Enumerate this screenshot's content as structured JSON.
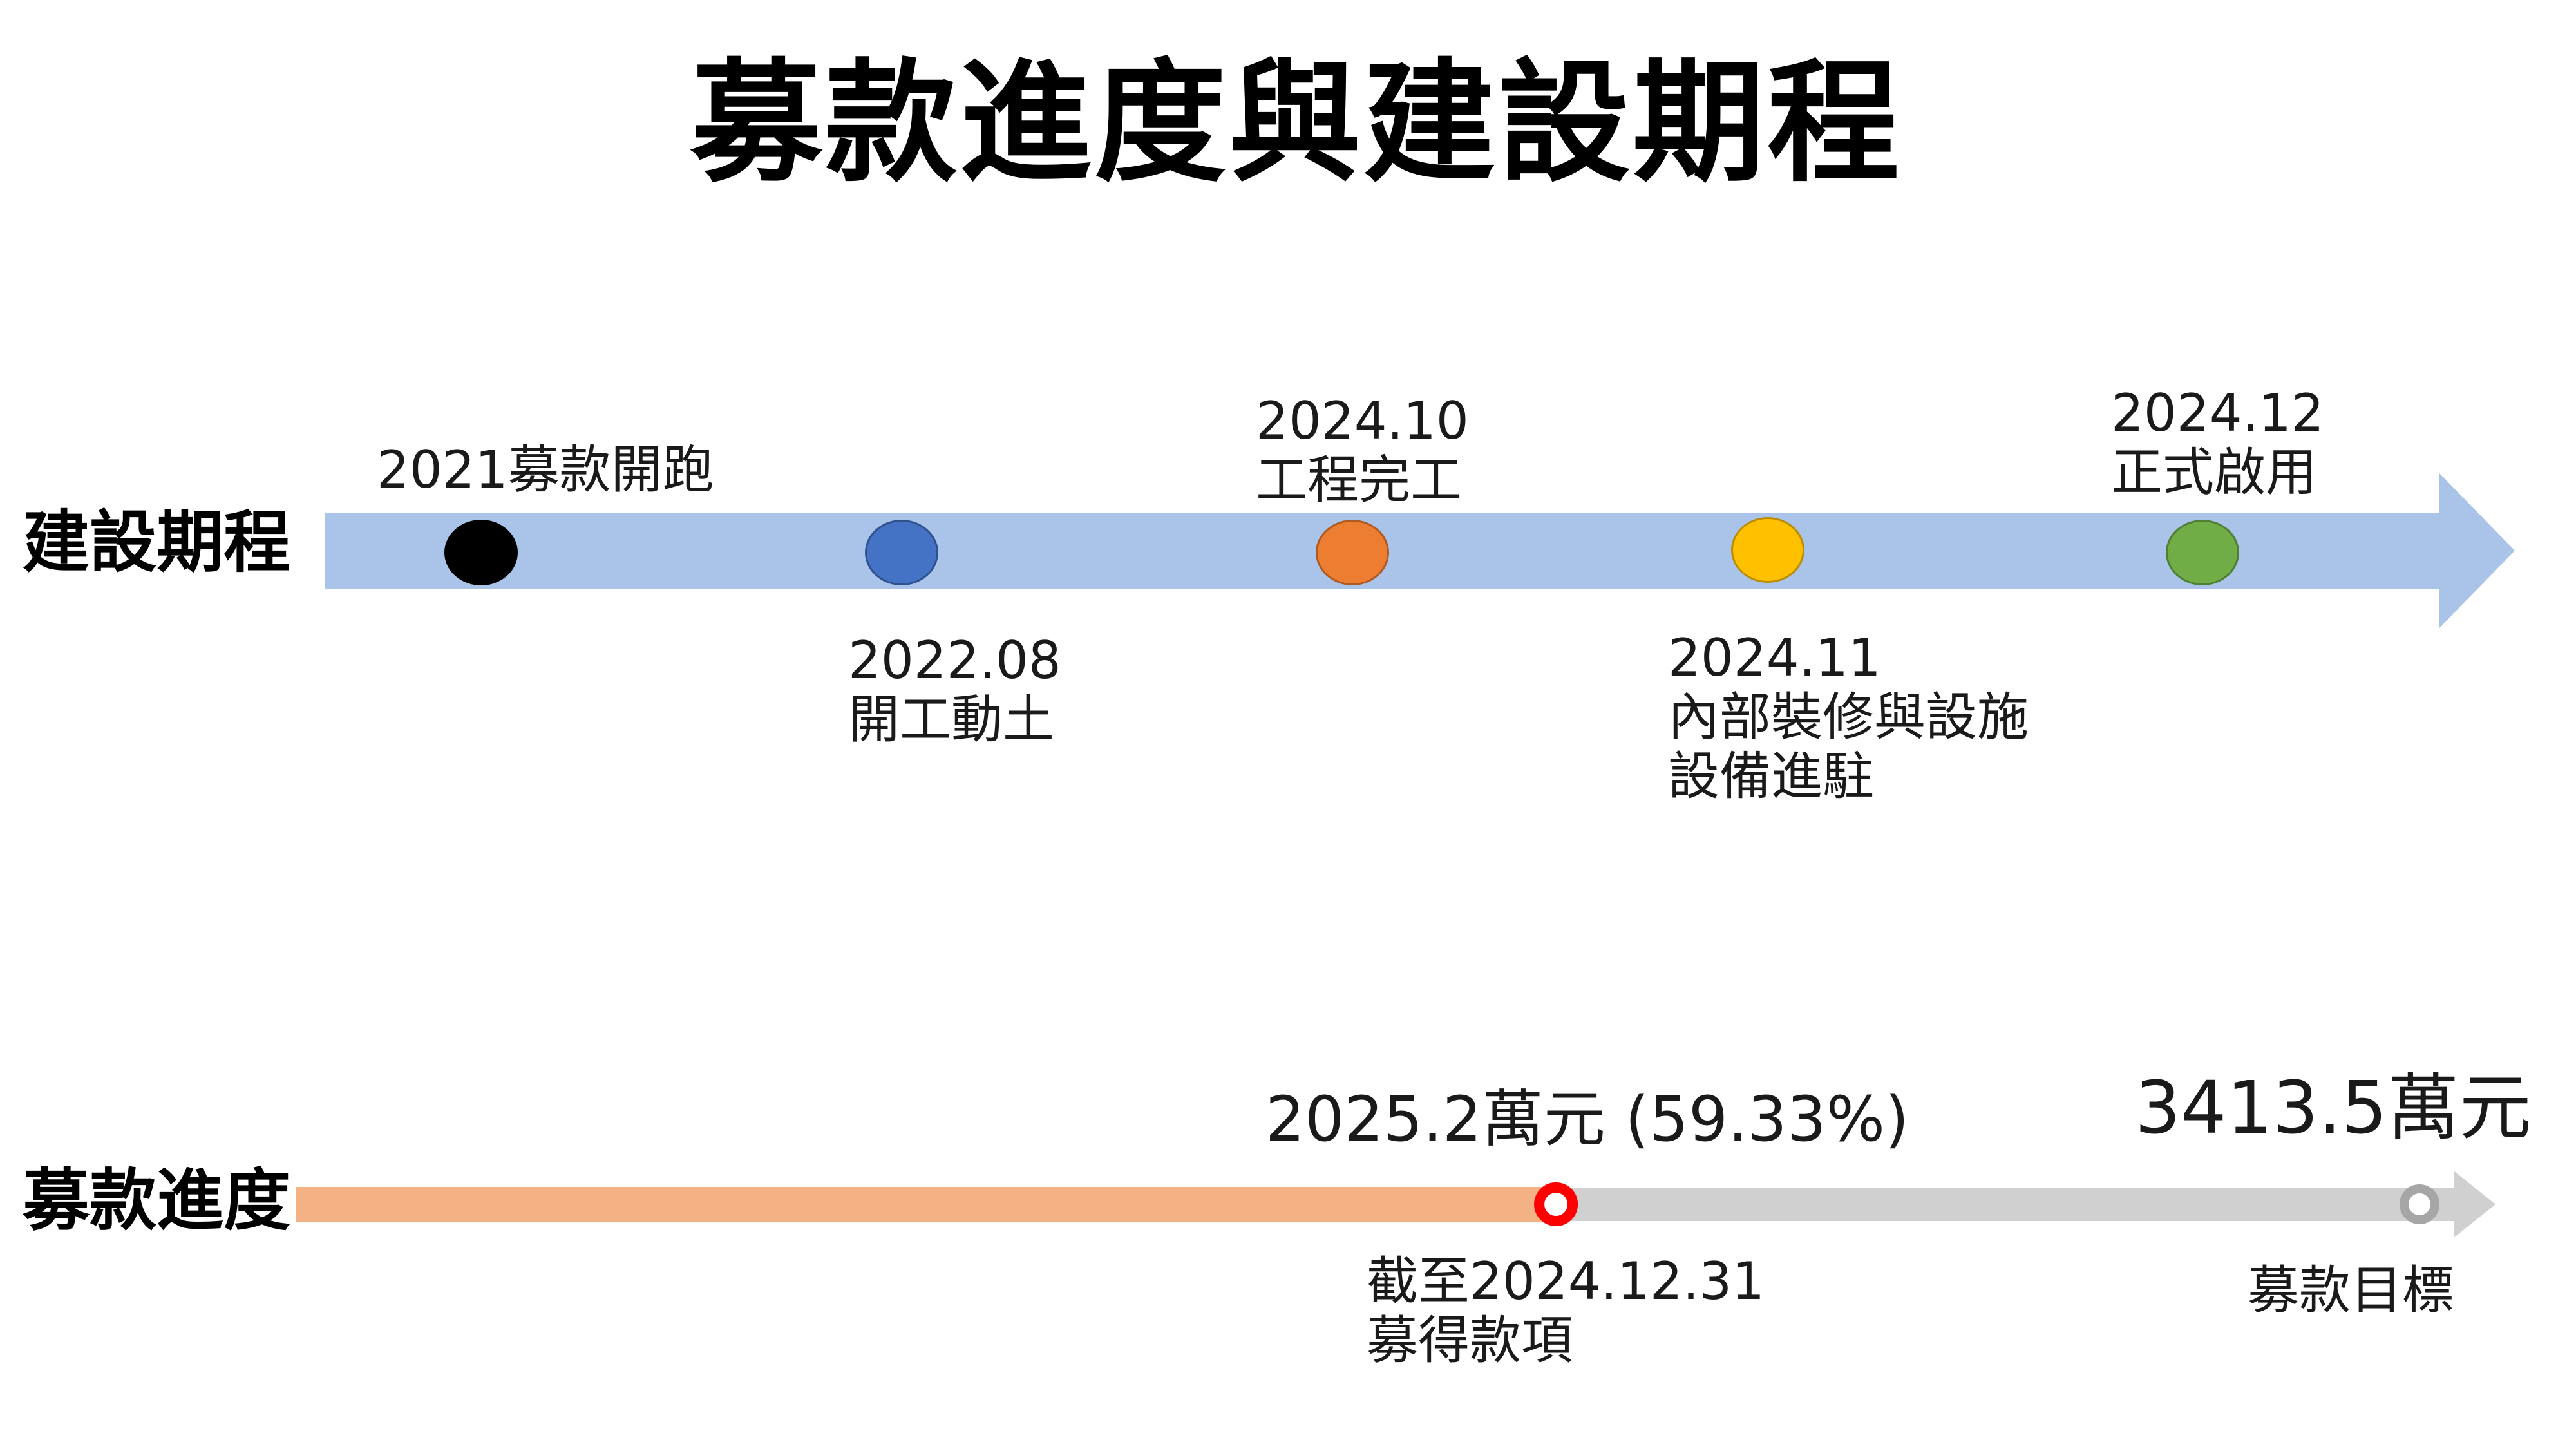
{
  "title": "募款進度與建設期程",
  "schedule": {
    "label": "建設期程",
    "milestones": [
      {
        "id": "m1",
        "lines": [
          "2021募款開跑"
        ],
        "color": "#000000"
      },
      {
        "id": "m2",
        "lines": [
          "2022.08",
          "開工動土"
        ],
        "color": "#4472C4"
      },
      {
        "id": "m3",
        "lines": [
          "2024.10",
          "工程完工"
        ],
        "color": "#ED7D31"
      },
      {
        "id": "m4",
        "lines": [
          "2024.11",
          "內部裝修與設施",
          "設備進駐"
        ],
        "color": "#FFC000"
      },
      {
        "id": "m5",
        "lines": [
          "2024.12",
          "正式啟用"
        ],
        "color": "#70AD47"
      }
    ],
    "arrow_color": "#A9C4E8"
  },
  "fundraising": {
    "label": "募款進度",
    "raised_amount": "2025.2萬元 (59.33%)",
    "raised_fraction": 0.5933,
    "raised_note_lines": [
      "截至2024.12.31",
      "募得款項"
    ],
    "goal_amount": "3413.5萬元",
    "goal_note": "募款目標",
    "raised_color": "#F4B183",
    "remaining_color": "#D0D0D0",
    "marker_color": "#FF0000"
  }
}
